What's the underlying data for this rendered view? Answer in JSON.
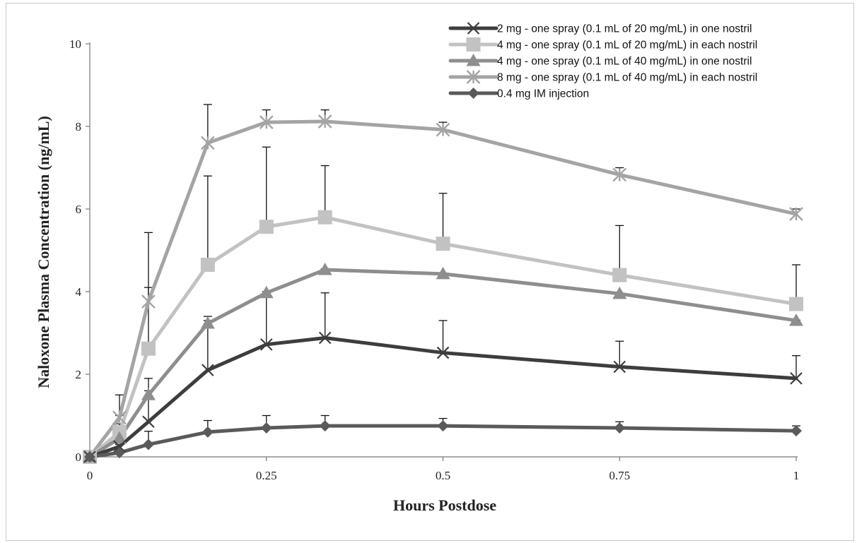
{
  "chart_data": {
    "type": "line",
    "title": "",
    "xlabel": "Hours Postdose",
    "ylabel": "Naloxone Plasma Concentration (ng/mL)",
    "xlim": [
      0,
      1
    ],
    "ylim": [
      0,
      10
    ],
    "x_ticks": [
      0,
      0.25,
      0.5,
      0.75,
      1
    ],
    "x_tick_labels": [
      "0",
      "0.25",
      "0.5",
      "0.75",
      "1"
    ],
    "y_ticks": [
      0,
      2,
      4,
      6,
      8,
      10
    ],
    "y_tick_labels": [
      "0",
      "2",
      "4",
      "6",
      "8",
      "10"
    ],
    "grid": false,
    "legend_position": "top-right",
    "x": [
      0,
      0.042,
      0.083,
      0.167,
      0.25,
      0.333,
      0.5,
      0.75,
      1
    ],
    "series": [
      {
        "name": "2 mg - one spray (0.1 mL of 20 mg/mL) in one nostril",
        "color": "#3d3d3d",
        "marker": "x",
        "values": [
          0,
          0.25,
          0.85,
          2.1,
          2.72,
          2.88,
          2.52,
          2.18,
          1.9
        ],
        "error_upper": [
          null,
          0.3,
          1.6,
          3.4,
          3.9,
          3.97,
          3.3,
          2.8,
          2.45
        ]
      },
      {
        "name": "4 mg - one spray (0.1 mL of 20 mg/mL) in each nostril",
        "color": "#c2c2c2",
        "marker": "square",
        "values": [
          0,
          0.6,
          2.62,
          4.65,
          5.57,
          5.8,
          5.16,
          4.4,
          3.7
        ],
        "error_upper": [
          null,
          1.0,
          4.1,
          6.8,
          7.5,
          7.05,
          6.38,
          5.6,
          4.65
        ]
      },
      {
        "name": "4 mg - one spray (0.1 mL of 40 mg/mL) in one nostril",
        "color": "#8e8e8e",
        "marker": "triangle",
        "values": [
          0,
          0.45,
          1.5,
          3.23,
          3.97,
          4.53,
          4.43,
          3.95,
          3.3
        ],
        "error_upper": [
          null,
          0.8,
          1.9,
          3.3,
          4.0,
          4.55,
          4.45,
          3.96,
          3.31
        ]
      },
      {
        "name": "8 mg - one spray (0.1 mL of 40 mg/mL) in each nostril",
        "color": "#a4a4a4",
        "marker": "star",
        "values": [
          0,
          0.95,
          3.76,
          7.6,
          8.1,
          8.12,
          7.92,
          6.83,
          5.88
        ],
        "error_upper": [
          null,
          1.5,
          5.43,
          8.53,
          8.4,
          8.4,
          8.1,
          7.0,
          6.0
        ]
      },
      {
        "name": "0.4 mg IM injection",
        "color": "#5a5a5a",
        "marker": "diamond",
        "values": [
          0,
          0.1,
          0.3,
          0.6,
          0.7,
          0.75,
          0.75,
          0.7,
          0.63
        ],
        "error_upper": [
          null,
          0.12,
          0.62,
          0.88,
          1.0,
          1.0,
          0.93,
          0.85,
          0.75
        ]
      }
    ]
  }
}
